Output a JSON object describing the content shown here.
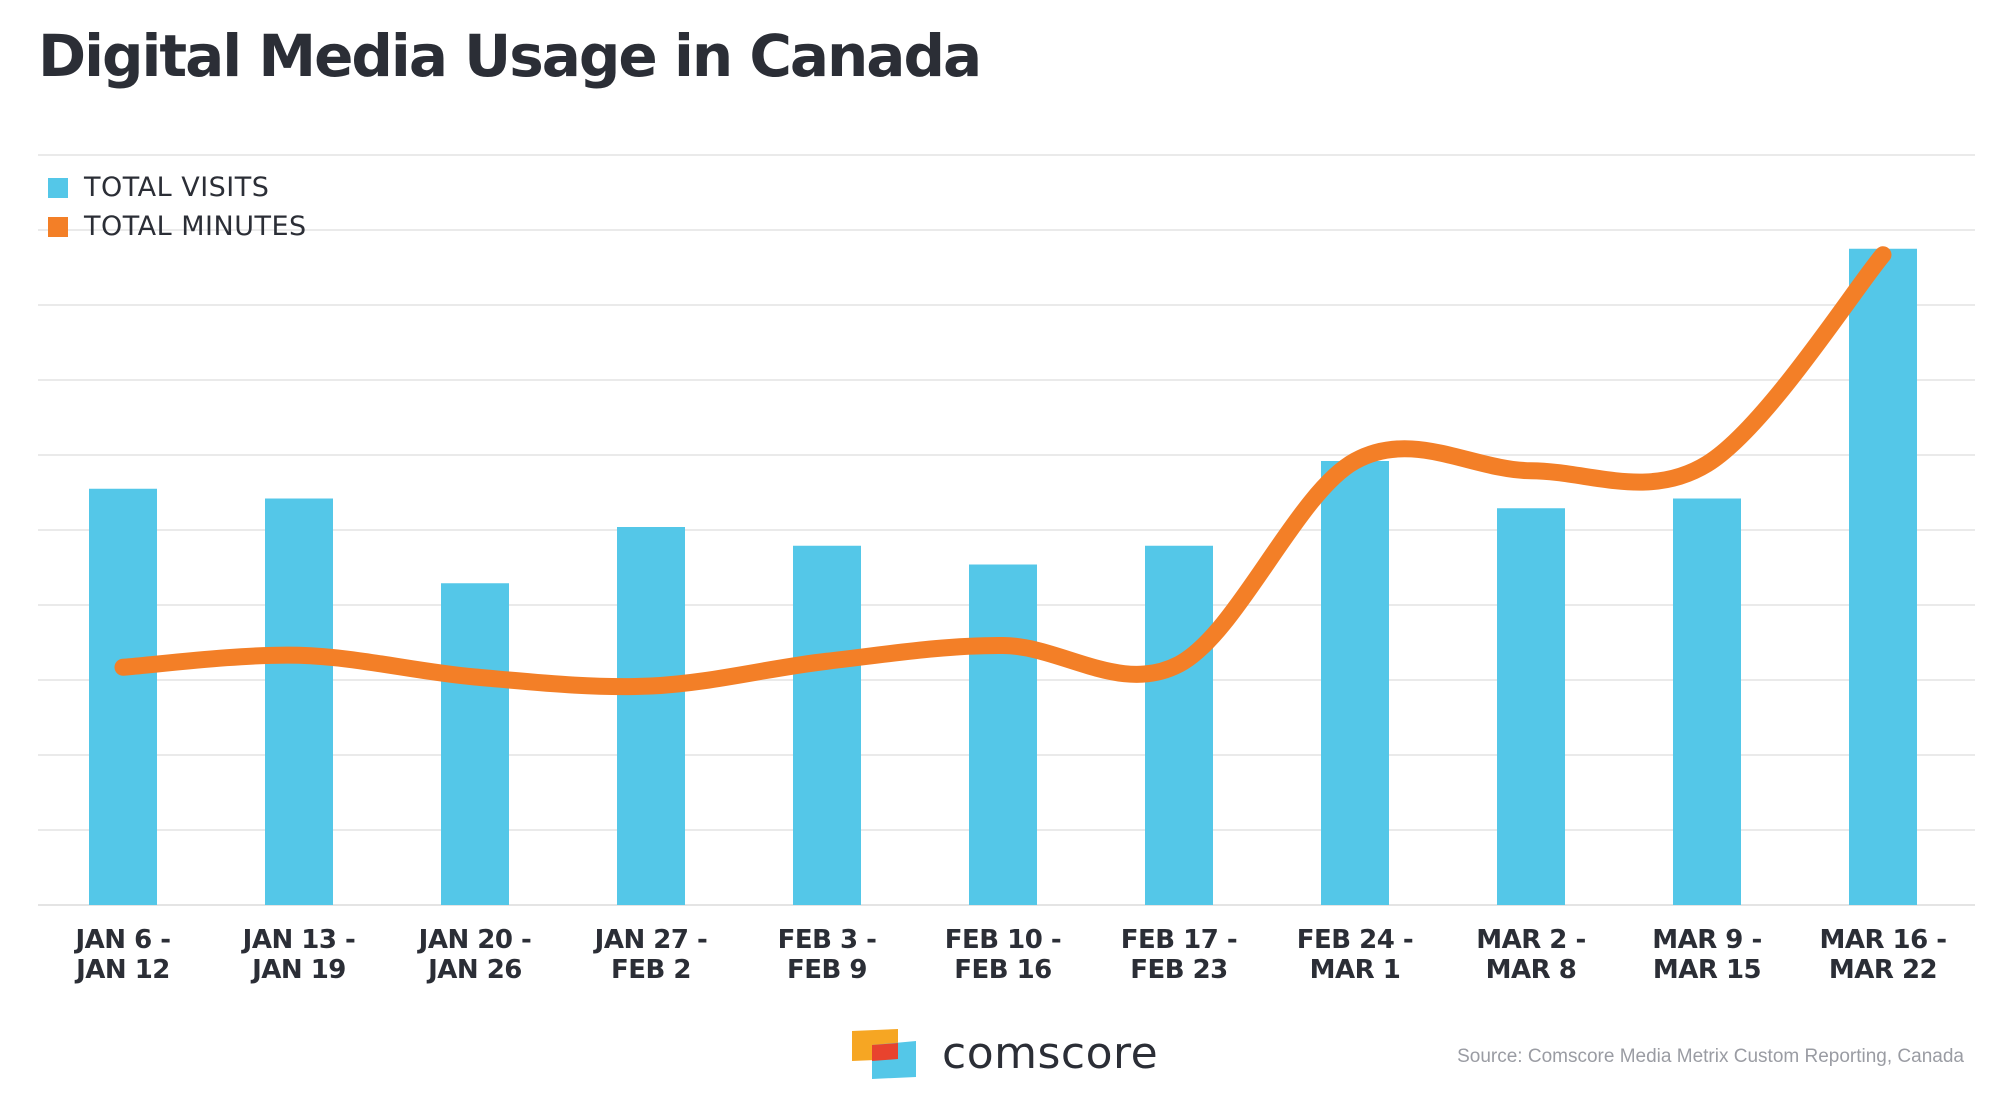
{
  "title": "Digital Media Usage in Canada",
  "colors": {
    "visits": "#54c7e8",
    "minutes": "#f37f27",
    "text": "#2b2e36",
    "grid": "#e4e4e4"
  },
  "chart_data": {
    "type": "bar",
    "title": "Digital Media Usage in Canada",
    "categories": [
      [
        "JAN 6 -",
        "JAN 12"
      ],
      [
        "JAN 13 -",
        "JAN 19"
      ],
      [
        "JAN 20 -",
        "JAN 26"
      ],
      [
        "JAN 27 -",
        "FEB 2"
      ],
      [
        "FEB 3 -",
        "FEB 9"
      ],
      [
        "FEB 10 -",
        "FEB 16"
      ],
      [
        "FEB 17 -",
        "FEB 23"
      ],
      [
        "FEB 24 -",
        "MAR 1"
      ],
      [
        "MAR 2 -",
        "MAR 8"
      ],
      [
        "MAR 9 -",
        "MAR 15"
      ],
      [
        "MAR 16 -",
        "MAR 22"
      ]
    ],
    "series": [
      {
        "name": "TOTAL VISITS",
        "type": "bar",
        "color": "#54c7e8",
        "values": [
          5.55,
          5.42,
          4.29,
          5.04,
          4.79,
          4.54,
          4.79,
          5.92,
          5.29,
          5.42,
          8.75
        ]
      },
      {
        "name": "TOTAL MINUTES",
        "type": "line",
        "color": "#f37f27",
        "values": [
          3.17,
          3.33,
          3.04,
          2.92,
          3.25,
          3.46,
          3.21,
          5.92,
          5.79,
          5.88,
          8.67
        ]
      }
    ],
    "ylim": [
      0,
      10
    ],
    "y_tick_labels": false,
    "grid": true,
    "legend": "top-left"
  },
  "legend": [
    {
      "label": "TOTAL VISITS",
      "color": "#54c7e8"
    },
    {
      "label": "TOTAL MINUTES",
      "color": "#f37f27"
    }
  ],
  "logo": {
    "text": "comscore"
  },
  "source": "Source: Comscore Media Metrix Custom Reporting, Canada"
}
